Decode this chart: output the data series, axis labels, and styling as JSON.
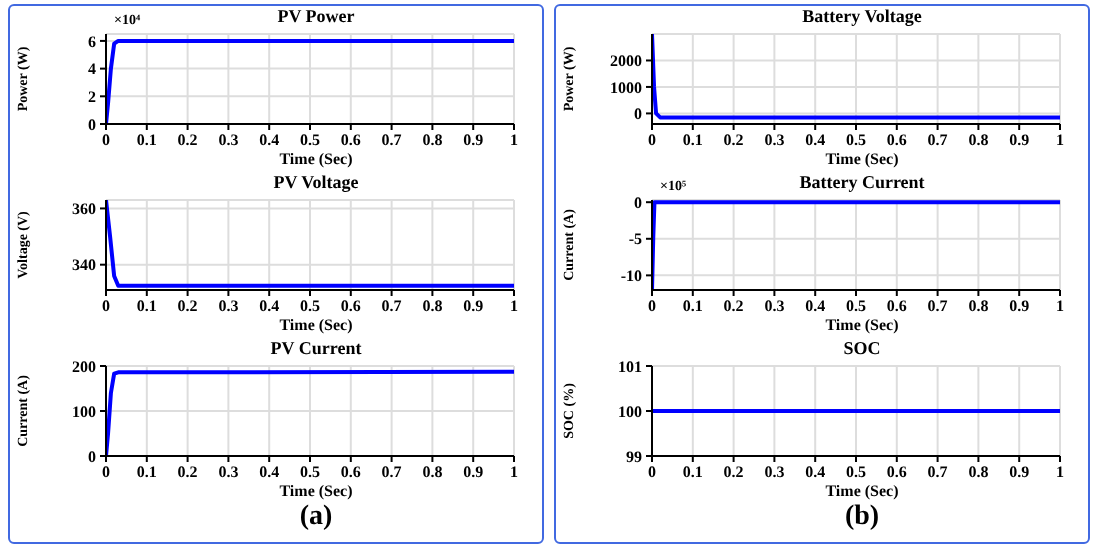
{
  "chart_data": [
    {
      "type": "line",
      "title": "PV Power",
      "xlabel": "Time (Sec)",
      "ylabel": "Power (W)",
      "annotations": [
        "×10⁴"
      ],
      "x": [
        0,
        0.005,
        0.012,
        0.02,
        0.03,
        1
      ],
      "values": [
        0,
        1.5,
        4,
        5.8,
        6,
        6
      ],
      "color": "#0000ff",
      "xlim": [
        0,
        1
      ],
      "xticks": [
        0,
        0.1,
        0.2,
        0.3,
        0.4,
        0.5,
        0.6,
        0.7,
        0.8,
        0.9,
        1
      ],
      "ylim": [
        0,
        6.5
      ],
      "yticks": [
        0,
        2,
        4,
        6
      ],
      "grid": true
    },
    {
      "type": "line",
      "title": "PV Voltage",
      "xlabel": "Time (Sec)",
      "ylabel": "Voltage (V)",
      "x": [
        0,
        0.01,
        0.02,
        0.03,
        1
      ],
      "values": [
        363,
        350,
        336,
        332.5,
        332.5
      ],
      "color": "#0000ff",
      "xlim": [
        0,
        1
      ],
      "xticks": [
        0,
        0.1,
        0.2,
        0.3,
        0.4,
        0.5,
        0.6,
        0.7,
        0.8,
        0.9,
        1
      ],
      "ylim": [
        331,
        363
      ],
      "yticks": [
        340,
        360
      ],
      "grid": true
    },
    {
      "type": "line",
      "title": "PV Current",
      "xlabel": "Time (Sec)",
      "ylabel": "Current (A)",
      "annotations": [
        "(a)"
      ],
      "x": [
        0,
        0.005,
        0.012,
        0.02,
        0.03,
        1
      ],
      "values": [
        0,
        50,
        140,
        183,
        186,
        187
      ],
      "color": "#0000ff",
      "xlim": [
        0,
        1
      ],
      "xticks": [
        0,
        0.1,
        0.2,
        0.3,
        0.4,
        0.5,
        0.6,
        0.7,
        0.8,
        0.9,
        1
      ],
      "ylim": [
        0,
        200
      ],
      "yticks": [
        0,
        100,
        200
      ],
      "grid": true
    },
    {
      "type": "line",
      "title": "Battery Voltage",
      "xlabel": "Time (Sec)",
      "ylabel": "Power (W)",
      "x": [
        0,
        0.005,
        0.01,
        0.02,
        1
      ],
      "values": [
        3000,
        1000,
        0,
        -150,
        -150
      ],
      "color": "#0000ff",
      "xlim": [
        0,
        1
      ],
      "xticks": [
        0,
        0.1,
        0.2,
        0.3,
        0.4,
        0.5,
        0.6,
        0.7,
        0.8,
        0.9,
        1
      ],
      "ylim": [
        -400,
        3000
      ],
      "yticks": [
        0,
        1000,
        2000
      ],
      "grid": true
    },
    {
      "type": "line",
      "title": "Battery Current",
      "xlabel": "Time (Sec)",
      "ylabel": "Current (A)",
      "annotations": [
        "×10⁵"
      ],
      "x": [
        0,
        0.003,
        0.006,
        1
      ],
      "values": [
        -12,
        -5,
        0,
        0
      ],
      "color": "#0000ff",
      "xlim": [
        0,
        1
      ],
      "xticks": [
        0,
        0.1,
        0.2,
        0.3,
        0.4,
        0.5,
        0.6,
        0.7,
        0.8,
        0.9,
        1
      ],
      "ylim": [
        -12,
        0.3
      ],
      "yticks": [
        -10,
        -5,
        0
      ],
      "grid": true
    },
    {
      "type": "line",
      "title": "SOC",
      "xlabel": "Time (Sec)",
      "ylabel": "SOC (%)",
      "annotations": [
        "(b)"
      ],
      "x": [
        0,
        1
      ],
      "values": [
        100,
        100
      ],
      "color": "#0000ff",
      "xlim": [
        0,
        1
      ],
      "xticks": [
        0,
        0.1,
        0.2,
        0.3,
        0.4,
        0.5,
        0.6,
        0.7,
        0.8,
        0.9,
        1
      ],
      "ylim": [
        99,
        101
      ],
      "yticks": [
        99,
        100,
        101
      ],
      "grid": true
    }
  ]
}
